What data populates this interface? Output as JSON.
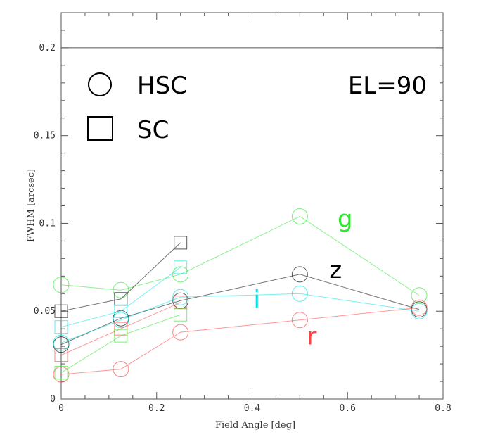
{
  "chart_data": {
    "type": "scatter",
    "title": "",
    "xlabel": "Field Angle [deg]",
    "ylabel": "FWHM [arcsec]",
    "xlim": [
      0,
      0.8
    ],
    "ylim": [
      0,
      0.22
    ],
    "x_ticks": [
      "0",
      "0.2",
      "0.4",
      "0.6",
      "0.8"
    ],
    "y_ticks": [
      "0",
      "0.05",
      "0.1",
      "0.15",
      "0.2"
    ],
    "reference_line_y": 0.2,
    "annotation": "EL=90",
    "legend": [
      {
        "marker": "circle",
        "label": "HSC"
      },
      {
        "marker": "square",
        "label": "SC"
      }
    ],
    "series": [
      {
        "name": "g",
        "instrument": "HSC",
        "marker": "circle",
        "color": "#2ee82e",
        "x": [
          0,
          0.125,
          0.25,
          0.5,
          0.75
        ],
        "y": [
          0.065,
          0.062,
          0.071,
          0.104,
          0.059
        ]
      },
      {
        "name": "z",
        "instrument": "HSC",
        "marker": "circle",
        "color": "#000000",
        "x": [
          0,
          0.125,
          0.25,
          0.5,
          0.75
        ],
        "y": [
          0.031,
          0.046,
          0.056,
          0.071,
          0.051
        ]
      },
      {
        "name": "i",
        "instrument": "HSC",
        "marker": "circle",
        "color": "#00e5e5",
        "x": [
          0,
          0.125,
          0.25,
          0.5,
          0.75
        ],
        "y": [
          0.032,
          0.045,
          0.058,
          0.06,
          0.05
        ]
      },
      {
        "name": "r",
        "instrument": "HSC",
        "marker": "circle",
        "color": "#ff4040",
        "x": [
          0,
          0.125,
          0.25,
          0.5,
          0.75
        ],
        "y": [
          0.014,
          0.017,
          0.038,
          0.045,
          0.052
        ]
      },
      {
        "name": "z",
        "instrument": "SC",
        "marker": "square",
        "color": "#000000",
        "x": [
          0,
          0.125,
          0.25
        ],
        "y": [
          0.05,
          0.057,
          0.089
        ]
      },
      {
        "name": "i",
        "instrument": "SC",
        "marker": "square",
        "color": "#00e5e5",
        "x": [
          0,
          0.125,
          0.25
        ],
        "y": [
          0.041,
          0.05,
          0.075
        ]
      },
      {
        "name": "r",
        "instrument": "SC",
        "marker": "square",
        "color": "#ff4040",
        "x": [
          0,
          0.125,
          0.25
        ],
        "y": [
          0.025,
          0.04,
          0.055
        ]
      },
      {
        "name": "g",
        "instrument": "SC",
        "marker": "square",
        "color": "#2ee82e",
        "x": [
          0,
          0.125,
          0.25
        ],
        "y": [
          0.015,
          0.036,
          0.048
        ]
      }
    ],
    "series_labels": [
      {
        "text": "g",
        "color": "#2ee82e",
        "x": 0.595,
        "y": 0.098
      },
      {
        "text": "z",
        "color": "#000000",
        "x": 0.575,
        "y": 0.069
      },
      {
        "text": "i",
        "color": "#00e5e5",
        "x": 0.41,
        "y": 0.052
      },
      {
        "text": "r",
        "color": "#ff4040",
        "x": 0.525,
        "y": 0.031
      }
    ]
  }
}
